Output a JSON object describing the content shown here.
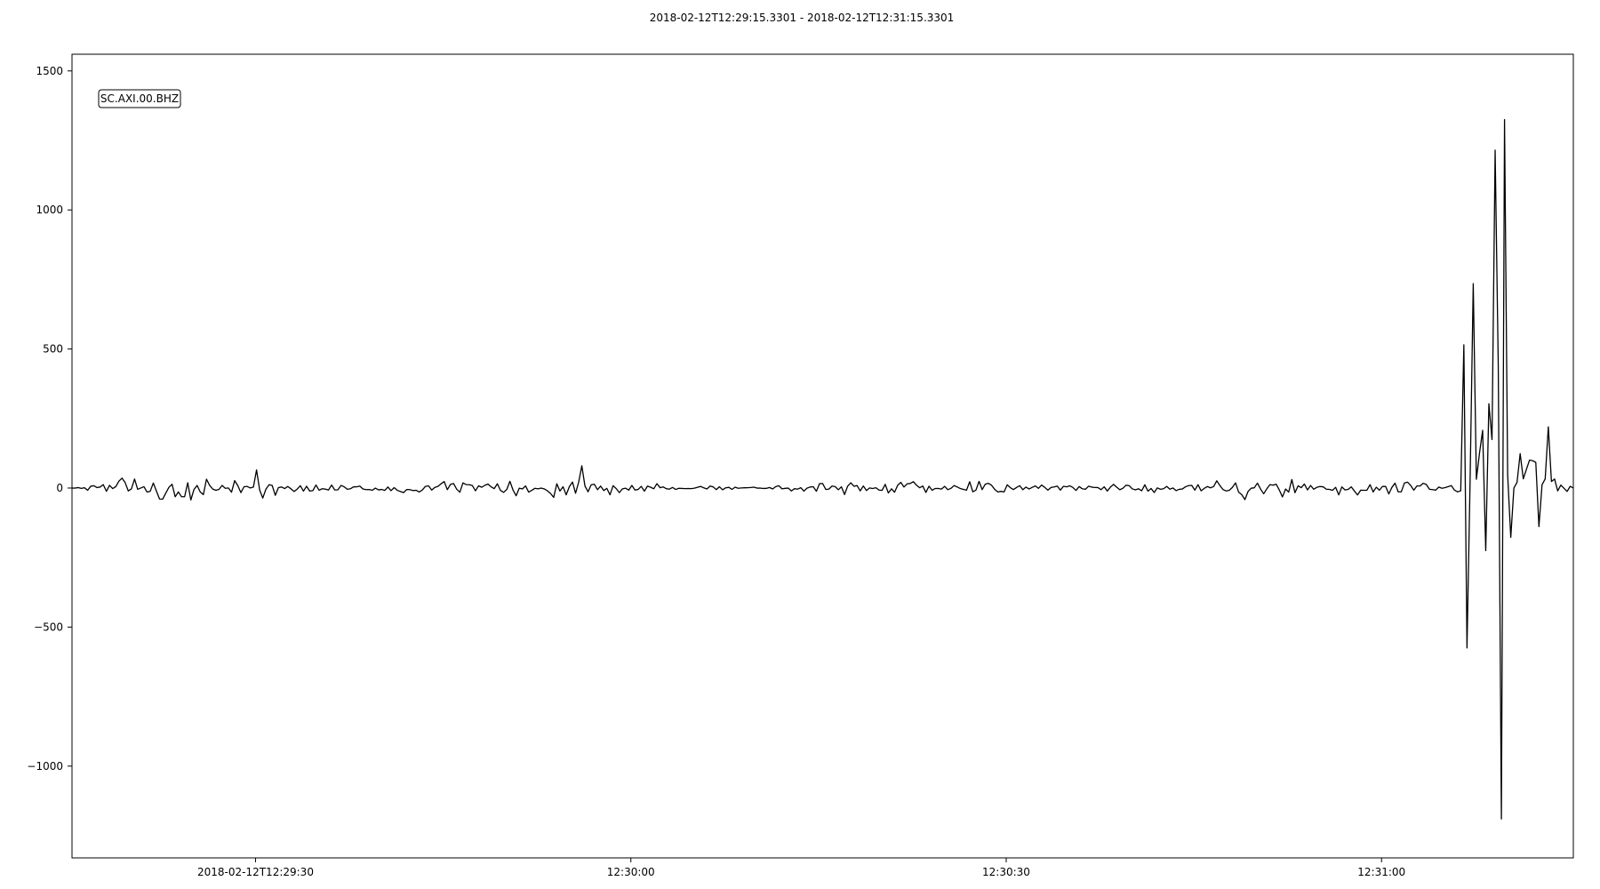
{
  "chart_data": {
    "type": "line",
    "title": "2018-02-12T12:29:15.3301  -  2018-02-12T12:31:15.3301",
    "trace_label": "SC.AXI.00.BHZ",
    "xlabel": "",
    "ylabel": "",
    "x_start": "2018-02-12T12:29:15.3301",
    "x_end": "2018-02-12T12:31:15.3301",
    "xlim_seconds": [
      0,
      120
    ],
    "ylim": [
      -1330,
      1560
    ],
    "x_ticks": [
      {
        "label": "2018-02-12T12:29:30",
        "t": 14.6699
      },
      {
        "label": "12:30:00",
        "t": 44.6699
      },
      {
        "label": "12:30:30",
        "t": 74.6699
      },
      {
        "label": "12:31:00",
        "t": 104.6699
      }
    ],
    "y_ticks": [
      {
        "label": "1500",
        "value": 1500
      },
      {
        "label": "1000",
        "value": 1000
      },
      {
        "label": "500",
        "value": 500
      },
      {
        "label": "0",
        "value": 0
      },
      {
        "label": "−500",
        "value": -500
      },
      {
        "label": "−1000",
        "value": -1000
      }
    ],
    "grid": false,
    "line_color": "#000000",
    "series": [
      {
        "name": "SC.AXI.00.BHZ",
        "sample_interval_s": 0.25,
        "noise_amplitude": 40,
        "event_onset_s": 111.2,
        "event_peak_max": 1430,
        "event_peak_min": -1190,
        "event_end_s": 120,
        "key_points": [
          {
            "t": 0,
            "y": 0
          },
          {
            "t": 14.7,
            "y": 65
          },
          {
            "t": 40.8,
            "y": 80
          },
          {
            "t": 111.2,
            "y": 515
          },
          {
            "t": 111.4,
            "y": -575
          },
          {
            "t": 112.0,
            "y": 735
          },
          {
            "t": 113.7,
            "y": 1215
          },
          {
            "t": 114.3,
            "y": 1430
          },
          {
            "t": 114.2,
            "y": -1190
          },
          {
            "t": 114.5,
            "y": 1325
          },
          {
            "t": 118.0,
            "y": 220
          },
          {
            "t": 120,
            "y": 0
          }
        ]
      }
    ]
  }
}
